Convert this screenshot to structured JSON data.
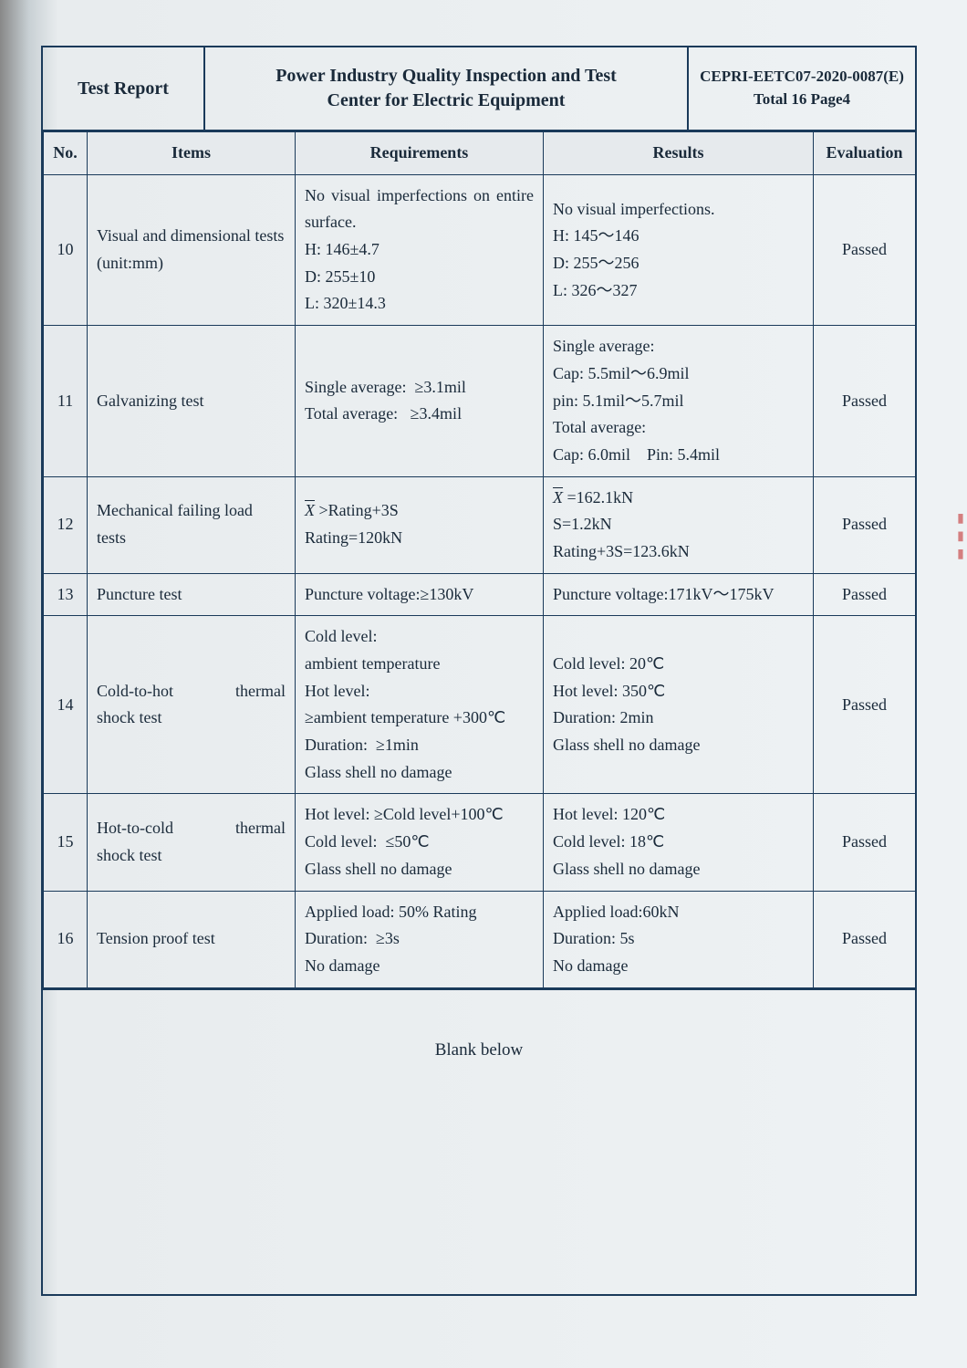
{
  "header": {
    "left": "Test Report",
    "mid_line1": "Power Industry Quality Inspection and Test",
    "mid_line2": "Center for Electric Equipment",
    "right_line1": "CEPRI-EETC07-2020-0087(E)",
    "right_line2": "Total 16 Page4"
  },
  "columns": {
    "no": "No.",
    "items": "Items",
    "requirements": "Requirements",
    "results": "Results",
    "evaluation": "Evaluation"
  },
  "rows": [
    {
      "no": "10",
      "item": "Visual and dimensional tests\n(unit:mm)",
      "req": "No visual imperfections on entire surface.\nH: 146±4.7\nD: 255±10\nL: 320±14.3",
      "res": "No visual imperfections.\nH: 145～146\nD: 255～256\nL: 326～327",
      "eval": "Passed"
    },
    {
      "no": "11",
      "item": "Galvanizing test",
      "req": "Single average:  ≥3.1mil\nTotal average:   ≥3.4mil",
      "res": "Single average:\nCap: 5.5mil～6.9mil\npin: 5.1mil～5.7mil\nTotal average:\nCap: 6.0mil    Pin: 5.4mil",
      "eval": "Passed"
    },
    {
      "no": "12",
      "item": "Mechanical failing load tests",
      "req_prefix": "",
      "req_xbar": "X",
      "req_after_xbar": " >Rating+3S",
      "req_line2": "Rating=120kN",
      "res_xbar": "X",
      "res_after_xbar": " =162.1kN",
      "res_line2": "S=1.2kN",
      "res_line3": "Rating+3S=123.6kN",
      "eval": "Passed"
    },
    {
      "no": "13",
      "item": "Puncture test",
      "req": "Puncture voltage:≥130kV",
      "res": "Puncture voltage:171kV～175kV",
      "eval": "Passed"
    },
    {
      "no": "14",
      "item_l": "Cold-to-hot",
      "item_r": "thermal",
      "item_line2": "shock test",
      "req": "Cold level:\nambient temperature\nHot level:\n≥ambient temperature +300℃\nDuration:  ≥1min\nGlass shell no damage",
      "res": "Cold level: 20℃\nHot level: 350℃\nDuration: 2min\nGlass shell no damage",
      "eval": "Passed"
    },
    {
      "no": "15",
      "item_l": "Hot-to-cold",
      "item_r": "thermal",
      "item_line2": "shock test",
      "req": "Hot level: ≥Cold level+100℃\nCold level:  ≤50℃\nGlass shell no damage",
      "res": "Hot level: 120℃\nCold level: 18℃\nGlass shell no damage",
      "eval": "Passed"
    },
    {
      "no": "16",
      "item": "Tension proof test",
      "req": "Applied load: 50% Rating\nDuration:  ≥3s\nNo damage",
      "res": "Applied load:60kN\nDuration: 5s\nNo damage",
      "eval": "Passed"
    }
  ],
  "blank_below": "Blank below",
  "style": {
    "border_color": "#1a3a5a",
    "text_color": "#1a2a3a",
    "bg_shade": "#e6eaed",
    "font_family": "Times New Roman, serif",
    "font_size_body": 18,
    "font_size_header": 20
  }
}
